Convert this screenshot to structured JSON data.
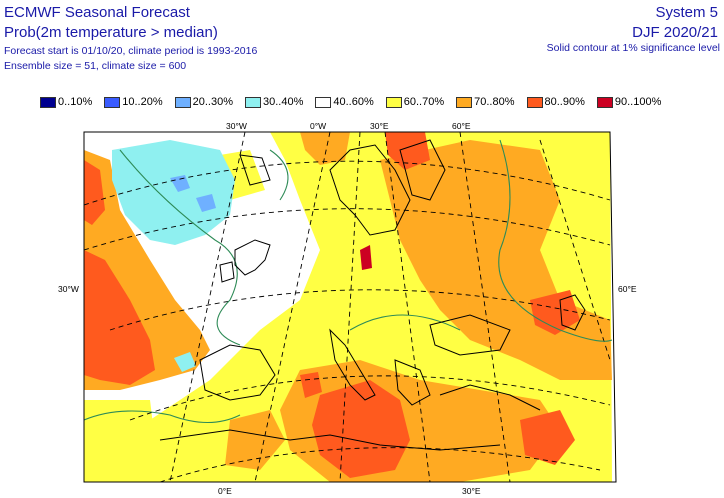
{
  "header": {
    "title": "ECMWF Seasonal Forecast",
    "subtitle": "Prob(2m temperature > median)",
    "forecast_info": "Forecast start is 01/10/20, climate period is 1993-2016",
    "ensemble_info": "Ensemble size = 51, climate size = 600",
    "system": "System 5",
    "season": "DJF 2020/21",
    "significance": "Solid contour at 1% significance level"
  },
  "legend": [
    {
      "label": "0..10%",
      "color": "#00008f"
    },
    {
      "label": "10..20%",
      "color": "#3a5cff"
    },
    {
      "label": "20..30%",
      "color": "#6fb0ff"
    },
    {
      "label": "30..40%",
      "color": "#8ff0f0"
    },
    {
      "label": "40..60%",
      "color": "#ffffff"
    },
    {
      "label": "60..70%",
      "color": "#ffff44"
    },
    {
      "label": "70..80%",
      "color": "#ffaa22"
    },
    {
      "label": "80..90%",
      "color": "#ff5a1e"
    },
    {
      "label": "90..100%",
      "color": "#cc0022"
    }
  ],
  "grid_labels": {
    "top": [
      "30°W",
      "0°W",
      "30°E",
      "60°E"
    ],
    "left": "30°W",
    "right": "60°E",
    "bottom": [
      "0°E",
      "30°E"
    ]
  },
  "colors": {
    "text": "#1a1aa8",
    "coast": "#000000",
    "significance_contour": "#2e8b57"
  }
}
